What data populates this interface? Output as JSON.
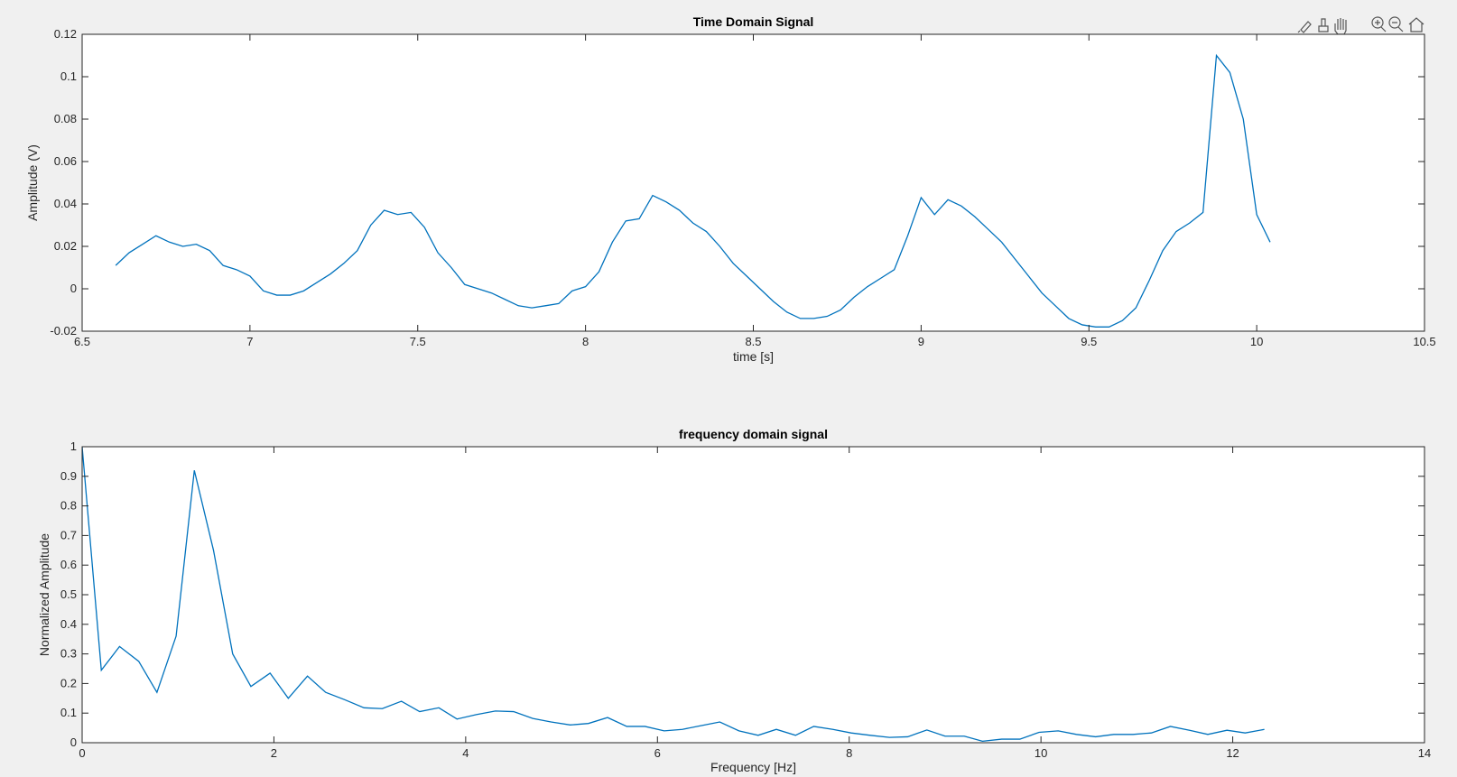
{
  "chart_data": [
    {
      "type": "line",
      "title": "Time Domain Signal",
      "xlabel": "time [s]",
      "ylabel": "Amplitude (V)",
      "color": "#0072bd",
      "xlim": [
        6.5,
        10.5
      ],
      "ylim": [
        -0.02,
        0.12
      ],
      "xticks": [
        6.5,
        7,
        7.5,
        8,
        8.5,
        9,
        9.5,
        10,
        10.5
      ],
      "yticks": [
        -0.02,
        0,
        0.02,
        0.04,
        0.06,
        0.08,
        0.1,
        0.12
      ],
      "x": [
        6.6,
        6.64,
        6.68,
        6.72,
        6.76,
        6.8,
        6.84,
        6.88,
        6.92,
        6.96,
        7.0,
        7.04,
        7.08,
        7.12,
        7.16,
        7.2,
        7.24,
        7.28,
        7.32,
        7.36,
        7.4,
        7.44,
        7.48,
        7.52,
        7.56,
        7.6,
        7.64,
        7.68,
        7.72,
        7.76,
        7.8,
        7.84,
        7.88,
        7.92,
        7.96,
        8.0,
        8.04,
        8.08,
        8.12,
        8.16,
        8.2,
        8.24,
        8.28,
        8.32,
        8.36,
        8.4,
        8.44,
        8.48,
        8.52,
        8.56,
        8.6,
        8.64,
        8.68,
        8.72,
        8.76,
        8.8,
        8.84,
        8.88,
        8.92,
        8.96,
        9.0,
        9.04,
        9.08,
        9.12,
        9.16,
        9.2,
        9.24,
        9.28,
        9.32,
        9.36,
        9.4,
        9.44,
        9.48,
        9.52,
        9.56,
        9.6,
        9.64,
        9.68,
        9.72,
        9.76,
        9.8,
        9.84,
        9.88,
        9.92,
        9.96,
        10.0,
        10.04
      ],
      "values": [
        0.011,
        0.017,
        0.021,
        0.025,
        0.022,
        0.02,
        0.021,
        0.018,
        0.011,
        0.009,
        0.006,
        -0.001,
        -0.003,
        -0.003,
        -0.001,
        0.003,
        0.007,
        0.012,
        0.018,
        0.03,
        0.037,
        0.035,
        0.036,
        0.029,
        0.017,
        0.01,
        0.002,
        0.0,
        -0.002,
        -0.005,
        -0.008,
        -0.009,
        -0.008,
        -0.007,
        -0.001,
        0.001,
        0.008,
        0.022,
        0.032,
        0.033,
        0.044,
        0.041,
        0.037,
        0.031,
        0.027,
        0.02,
        0.012,
        0.006,
        0.0,
        -0.006,
        -0.011,
        -0.014,
        -0.014,
        -0.013,
        -0.01,
        -0.004,
        0.001,
        0.005,
        0.009,
        0.025,
        0.043,
        0.035,
        0.042,
        0.039,
        0.034,
        0.028,
        0.022,
        0.014,
        0.006,
        -0.002,
        -0.008,
        -0.014,
        -0.017,
        -0.018,
        -0.018,
        -0.015,
        -0.009,
        0.004,
        0.018,
        0.027,
        0.031,
        0.036,
        0.11,
        0.102,
        0.08,
        0.035,
        0.022
      ]
    },
    {
      "type": "line",
      "title": "frequency domain signal",
      "xlabel": "Frequency [Hz]",
      "ylabel": "Normalized Amplitude",
      "color": "#0072bd",
      "xlim": [
        0,
        14
      ],
      "ylim": [
        0,
        1
      ],
      "xticks": [
        0,
        2,
        4,
        6,
        8,
        10,
        12,
        14
      ],
      "yticks": [
        0,
        0.1,
        0.2,
        0.3,
        0.4,
        0.5,
        0.6,
        0.7,
        0.8,
        0.9,
        1
      ],
      "x": [
        0,
        0.2,
        0.39,
        0.59,
        0.78,
        0.98,
        1.17,
        1.37,
        1.57,
        1.76,
        1.96,
        2.15,
        2.35,
        2.54,
        2.74,
        2.94,
        3.13,
        3.33,
        3.52,
        3.72,
        3.91,
        4.11,
        4.31,
        4.5,
        4.7,
        4.89,
        5.09,
        5.28,
        5.48,
        5.68,
        5.87,
        6.07,
        6.26,
        6.46,
        6.65,
        6.85,
        7.05,
        7.24,
        7.44,
        7.63,
        7.83,
        8.02,
        8.22,
        8.42,
        8.61,
        8.81,
        9.0,
        9.2,
        9.39,
        9.59,
        9.78,
        9.98,
        10.18,
        10.37,
        10.57,
        10.76,
        10.96,
        11.15,
        11.35,
        11.55,
        11.74,
        11.94,
        12.13,
        12.33
      ],
      "values": [
        1.0,
        0.245,
        0.325,
        0.275,
        0.17,
        0.36,
        0.92,
        0.65,
        0.3,
        0.19,
        0.235,
        0.15,
        0.225,
        0.17,
        0.145,
        0.118,
        0.115,
        0.14,
        0.105,
        0.118,
        0.08,
        0.095,
        0.107,
        0.105,
        0.082,
        0.07,
        0.06,
        0.065,
        0.085,
        0.055,
        0.055,
        0.04,
        0.045,
        0.058,
        0.07,
        0.04,
        0.025,
        0.045,
        0.025,
        0.055,
        0.045,
        0.033,
        0.025,
        0.018,
        0.02,
        0.043,
        0.022,
        0.022,
        0.005,
        0.012,
        0.012,
        0.035,
        0.04,
        0.028,
        0.02,
        0.028,
        0.028,
        0.033,
        0.055,
        0.042,
        0.028,
        0.042,
        0.033,
        0.045
      ]
    }
  ]
}
